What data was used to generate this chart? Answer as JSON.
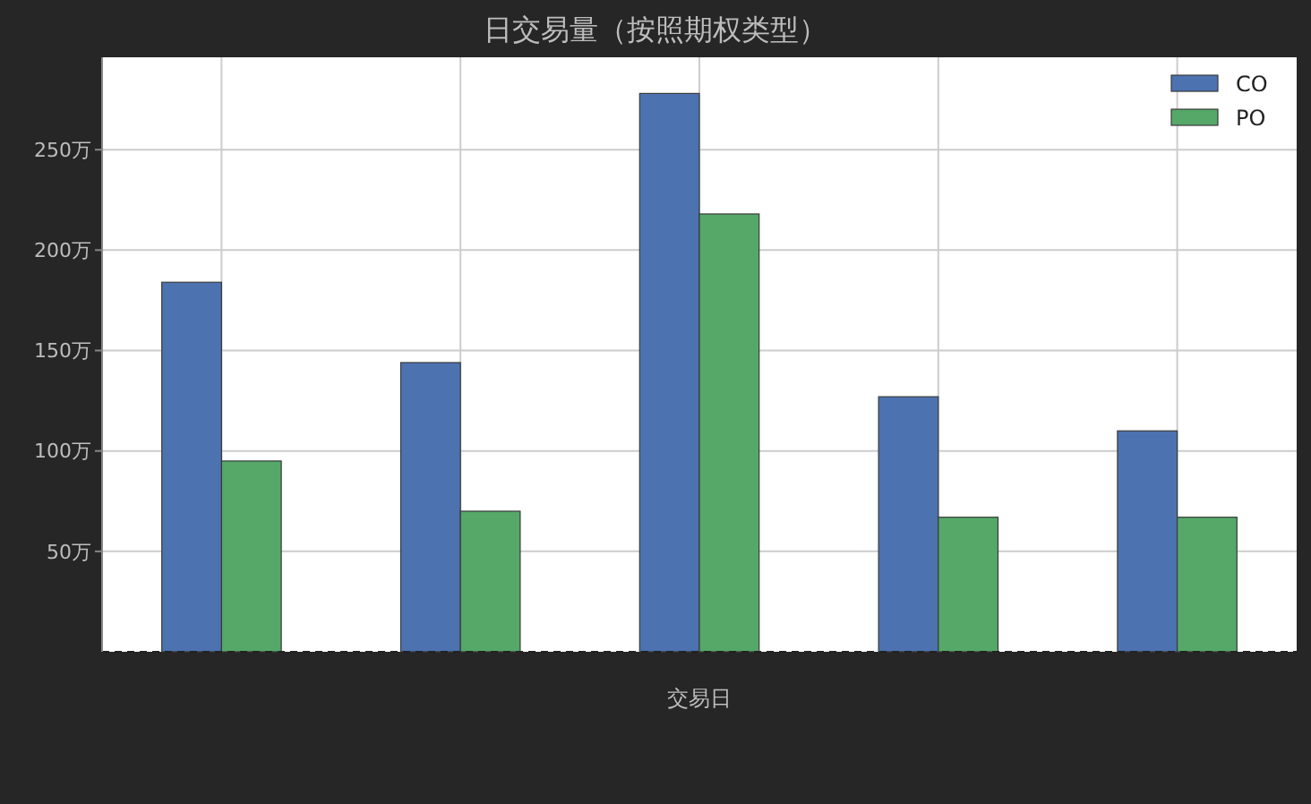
{
  "chart_data": {
    "type": "bar",
    "title": "日交易量（按照期权类型）",
    "xlabel": "交易日",
    "categories": [
      null,
      null,
      null,
      null,
      null
    ],
    "series": [
      {
        "name": "CO",
        "color": "#4c72b0",
        "values": [
          184,
          144,
          278,
          127,
          110
        ]
      },
      {
        "name": "PO",
        "color": "#55a868",
        "values": [
          95,
          70,
          218,
          67,
          67
        ]
      }
    ],
    "ylim": [
      0,
      296
    ],
    "yticks": [
      {
        "value": 50,
        "label": "50万"
      },
      {
        "value": 100,
        "label": "100万"
      },
      {
        "value": 150,
        "label": "150万"
      },
      {
        "value": 200,
        "label": "200万"
      },
      {
        "value": 250,
        "label": "250万"
      }
    ],
    "grid": true,
    "legend": "top right"
  }
}
